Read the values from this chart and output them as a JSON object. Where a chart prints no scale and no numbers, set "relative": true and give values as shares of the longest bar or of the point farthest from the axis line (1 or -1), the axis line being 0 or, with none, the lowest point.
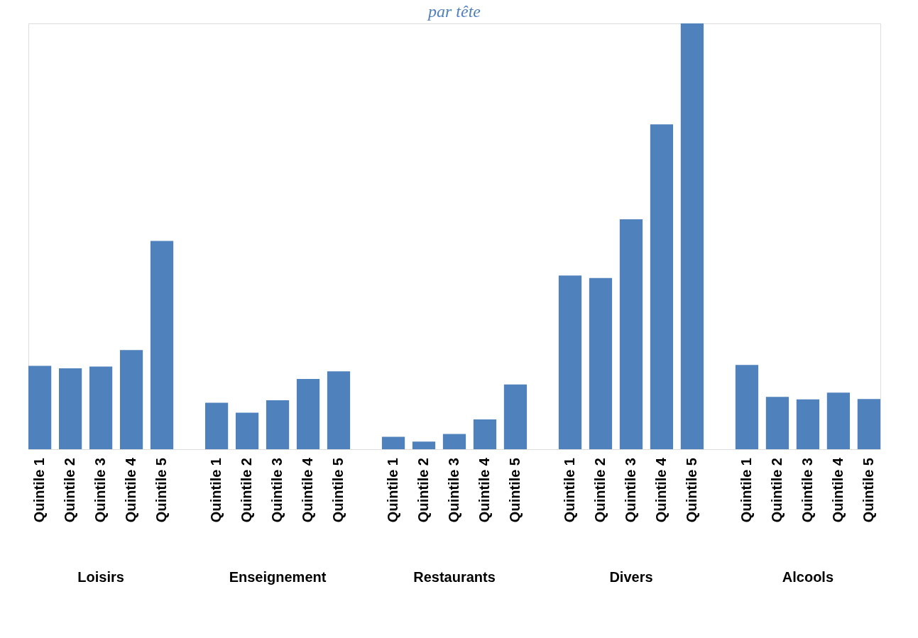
{
  "chart_data": {
    "type": "bar",
    "title": "par tête",
    "relative": true,
    "grid": false,
    "categories": [
      "Loisirs",
      "Enseignement",
      "Restaurants",
      "Divers",
      "Alcools"
    ],
    "series": [
      {
        "name": "Quintile 1",
        "color": "#4f81bd",
        "values": [
          0.196,
          0.109,
          0.029,
          0.408,
          0.198
        ]
      },
      {
        "name": "Quintile 2",
        "color": "#4f81bd",
        "values": [
          0.19,
          0.086,
          0.018,
          0.402,
          0.123
        ]
      },
      {
        "name": "Quintile 3",
        "color": "#4f81bd",
        "values": [
          0.194,
          0.115,
          0.036,
          0.54,
          0.117
        ]
      },
      {
        "name": "Quintile 4",
        "color": "#4f81bd",
        "values": [
          0.233,
          0.165,
          0.07,
          0.763,
          0.133
        ]
      },
      {
        "name": "Quintile 5",
        "color": "#4f81bd",
        "values": [
          0.489,
          0.183,
          0.152,
          1,
          0.118
        ]
      }
    ]
  }
}
